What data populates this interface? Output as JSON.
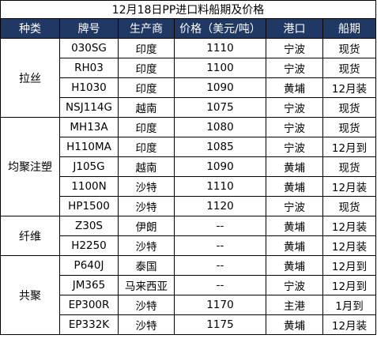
{
  "title": "12月18日PP进口料船期及价格",
  "header_bg": "#1f3864",
  "headers": [
    "种类",
    "牌号",
    "生产商",
    "价格（美元/吨）",
    "港口",
    "船期"
  ],
  "groups": [
    {
      "category": "拉丝",
      "rows": [
        [
          "030SG",
          "印度",
          "1110",
          "宁波",
          "现货"
        ],
        [
          "RH03",
          "印度",
          "1100",
          "宁波",
          "现货"
        ],
        [
          "H1030",
          "印度",
          "1090",
          "黄埔",
          "12月装"
        ],
        [
          "NSJ114G",
          "越南",
          "1075",
          "宁波",
          "现货"
        ]
      ]
    },
    {
      "category": "均聚注塑",
      "rows": [
        [
          "MH13A",
          "印度",
          "1080",
          "宁波",
          "现货"
        ],
        [
          "H110MA",
          "印度",
          "1085",
          "宁波",
          "12月到"
        ],
        [
          "J105G",
          "越南",
          "1090",
          "黄埔",
          "现货"
        ],
        [
          "1100N",
          "沙特",
          "1110",
          "黄埔",
          "12月装"
        ],
        [
          "HP1500",
          "沙特",
          "1120",
          "宁波",
          "现货"
        ]
      ]
    },
    {
      "category": "纤维",
      "rows": [
        [
          "Z30S",
          "伊朗",
          "--",
          "黄埔",
          "12月装"
        ],
        [
          "H2250",
          "沙特",
          "--",
          "黄埔",
          "12月装"
        ]
      ]
    },
    {
      "category": "共聚",
      "rows": [
        [
          "P640J",
          "泰国",
          "--",
          "黄埔",
          "12月到"
        ],
        [
          "JM365",
          "马来西亚",
          "--",
          "宁波",
          "12月到"
        ],
        [
          "EP300R",
          "沙特",
          "1170",
          "主港",
          "1月到"
        ],
        [
          "EP332K",
          "沙特",
          "1175",
          "黄埔",
          "12月装"
        ]
      ]
    }
  ]
}
